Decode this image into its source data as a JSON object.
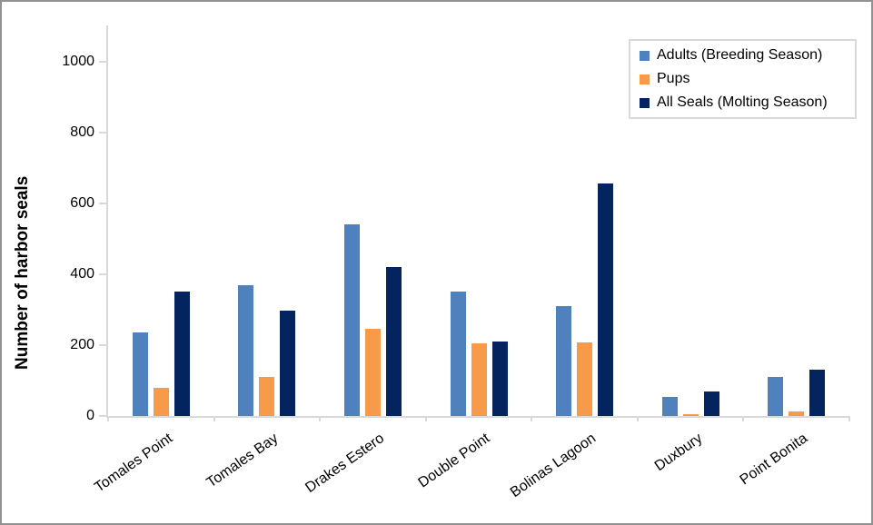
{
  "chart_data": {
    "type": "bar",
    "title": "",
    "xlabel": "",
    "ylabel": "Number of harbor seals",
    "categories": [
      "Tomales Point",
      "Tomales Bay",
      "Drakes Estero",
      "Double Point",
      "Bolinas Lagoon",
      "Duxbury",
      "Point Bonita"
    ],
    "series": [
      {
        "name": "Adults (Breeding Season)",
        "color": "#4F81BD",
        "values": [
          235,
          368,
          540,
          352,
          309,
          55,
          109
        ]
      },
      {
        "name": "Pups",
        "color": "#F79A49",
        "values": [
          80,
          110,
          247,
          204,
          208,
          5,
          14
        ]
      },
      {
        "name": "All Seals (Molting Season)",
        "color": "#03245F",
        "values": [
          352,
          297,
          421,
          210,
          657,
          70,
          130
        ]
      }
    ],
    "ylim": [
      0,
      1100
    ],
    "yticks": [
      0,
      200,
      400,
      600,
      800,
      1000
    ],
    "grid": false,
    "legend_position": "top-right"
  },
  "colors": {
    "axis_line": "#D9D9D9",
    "text": "#000000",
    "frame_border": "#919191",
    "legend_border": "#D9D9D9",
    "background": "#FFFFFF"
  }
}
